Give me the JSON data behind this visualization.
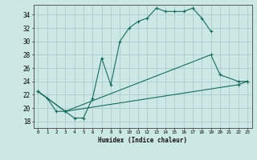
{
  "title": "",
  "xlabel": "Humidex (Indice chaleur)",
  "background_color": "#cce8e4",
  "grid_color": "#aacccc",
  "line_color": "#1a6b5a",
  "xlim": [
    -0.5,
    23.5
  ],
  "ylim": [
    17.0,
    35.5
  ],
  "xticks": [
    0,
    1,
    2,
    3,
    4,
    5,
    6,
    7,
    8,
    9,
    10,
    11,
    12,
    13,
    14,
    15,
    16,
    17,
    18,
    19,
    20,
    21,
    22,
    23
  ],
  "yticks": [
    18,
    20,
    22,
    24,
    26,
    28,
    30,
    32,
    34
  ],
  "segments": [
    {
      "x": [
        0,
        1,
        2,
        3,
        4,
        5,
        6,
        7,
        8,
        9,
        10,
        11,
        12,
        13,
        14,
        15,
        16,
        17,
        18,
        19
      ],
      "y": [
        22.5,
        21.5,
        19.5,
        19.5,
        18.5,
        18.5,
        21.5,
        27.5,
        23.5,
        30.0,
        32.0,
        33.0,
        33.5,
        35.0,
        34.5,
        34.5,
        34.5,
        35.0,
        33.5,
        31.5
      ]
    },
    {
      "x": [
        0,
        3,
        19,
        20,
        22,
        23
      ],
      "y": [
        22.5,
        19.5,
        28.0,
        25.0,
        24.0,
        24.0
      ]
    },
    {
      "x": [
        0,
        3,
        22,
        23
      ],
      "y": [
        22.5,
        19.5,
        23.5,
        24.0
      ]
    }
  ]
}
